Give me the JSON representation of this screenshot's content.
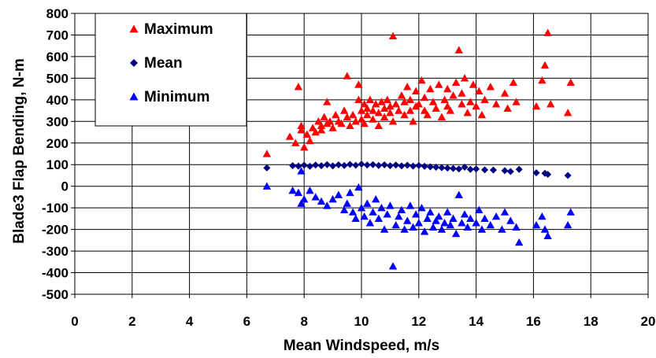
{
  "chart_data": {
    "type": "scatter",
    "title": "",
    "xlabel": "Mean Windspeed, m/s",
    "ylabel": "Blade3 Flap Bending, N-m",
    "xlim": [
      0,
      20
    ],
    "ylim": [
      -500,
      800
    ],
    "x_ticks": [
      "0",
      "2",
      "4",
      "6",
      "8",
      "10",
      "12",
      "14",
      "16",
      "18",
      "20"
    ],
    "y_ticks": [
      "800",
      "700",
      "600",
      "500",
      "400",
      "300",
      "200",
      "100",
      "0",
      "-100",
      "-200",
      "-300",
      "-400",
      "-500"
    ],
    "grid": true,
    "legend_position": "top-left",
    "series": [
      {
        "name": "Maximum",
        "marker": "triangle",
        "color": "#ff0000",
        "points": [
          [
            6.7,
            150
          ],
          [
            7.5,
            230
          ],
          [
            7.7,
            200
          ],
          [
            7.8,
            460
          ],
          [
            7.9,
            260
          ],
          [
            7.9,
            280
          ],
          [
            8.0,
            180
          ],
          [
            8.1,
            240
          ],
          [
            8.2,
            210
          ],
          [
            8.3,
            270
          ],
          [
            8.4,
            250
          ],
          [
            8.5,
            300
          ],
          [
            8.6,
            280
          ],
          [
            8.6,
            260
          ],
          [
            8.7,
            320
          ],
          [
            8.8,
            390
          ],
          [
            8.8,
            290
          ],
          [
            8.9,
            300
          ],
          [
            9.0,
            270
          ],
          [
            9.1,
            330
          ],
          [
            9.2,
            300
          ],
          [
            9.3,
            290
          ],
          [
            9.4,
            350
          ],
          [
            9.5,
            510
          ],
          [
            9.5,
            320
          ],
          [
            9.6,
            280
          ],
          [
            9.7,
            330
          ],
          [
            9.8,
            300
          ],
          [
            9.9,
            400
          ],
          [
            9.9,
            470
          ],
          [
            10.0,
            350
          ],
          [
            10.0,
            310
          ],
          [
            10.1,
            380
          ],
          [
            10.1,
            290
          ],
          [
            10.2,
            360
          ],
          [
            10.2,
            330
          ],
          [
            10.3,
            400
          ],
          [
            10.4,
            350
          ],
          [
            10.4,
            310
          ],
          [
            10.5,
            380
          ],
          [
            10.6,
            280
          ],
          [
            10.6,
            340
          ],
          [
            10.7,
            390
          ],
          [
            10.8,
            360
          ],
          [
            10.8,
            320
          ],
          [
            10.9,
            400
          ],
          [
            11.0,
            340
          ],
          [
            11.0,
            370
          ],
          [
            11.1,
            695
          ],
          [
            11.1,
            300
          ],
          [
            11.2,
            380
          ],
          [
            11.3,
            350
          ],
          [
            11.4,
            420
          ],
          [
            11.5,
            330
          ],
          [
            11.5,
            390
          ],
          [
            11.6,
            460
          ],
          [
            11.7,
            350
          ],
          [
            11.7,
            400
          ],
          [
            11.8,
            300
          ],
          [
            11.9,
            370
          ],
          [
            11.9,
            440
          ],
          [
            12.0,
            380
          ],
          [
            12.1,
            490
          ],
          [
            12.2,
            350
          ],
          [
            12.2,
            410
          ],
          [
            12.3,
            330
          ],
          [
            12.4,
            450
          ],
          [
            12.5,
            390
          ],
          [
            12.6,
            360
          ],
          [
            12.7,
            470
          ],
          [
            12.8,
            320
          ],
          [
            12.9,
            400
          ],
          [
            13.0,
            370
          ],
          [
            13.0,
            450
          ],
          [
            13.1,
            350
          ],
          [
            13.2,
            420
          ],
          [
            13.3,
            480
          ],
          [
            13.4,
            630
          ],
          [
            13.5,
            380
          ],
          [
            13.5,
            430
          ],
          [
            13.6,
            500
          ],
          [
            13.7,
            340
          ],
          [
            13.8,
            390
          ],
          [
            13.9,
            470
          ],
          [
            14.0,
            370
          ],
          [
            14.1,
            440
          ],
          [
            14.2,
            330
          ],
          [
            14.3,
            400
          ],
          [
            14.5,
            460
          ],
          [
            14.7,
            380
          ],
          [
            15.0,
            430
          ],
          [
            15.1,
            360
          ],
          [
            15.3,
            480
          ],
          [
            15.4,
            390
          ],
          [
            16.1,
            370
          ],
          [
            16.3,
            490
          ],
          [
            16.4,
            560
          ],
          [
            16.5,
            710
          ],
          [
            16.6,
            380
          ],
          [
            17.2,
            340
          ],
          [
            17.3,
            480
          ]
        ]
      },
      {
        "name": "Mean",
        "marker": "diamond",
        "color": "#000080",
        "points": [
          [
            6.7,
            85
          ],
          [
            7.6,
            95
          ],
          [
            7.8,
            93
          ],
          [
            8.0,
            97
          ],
          [
            8.2,
            92
          ],
          [
            8.4,
            98
          ],
          [
            8.6,
            95
          ],
          [
            8.8,
            100
          ],
          [
            9.0,
            94
          ],
          [
            9.2,
            99
          ],
          [
            9.4,
            96
          ],
          [
            9.6,
            101
          ],
          [
            9.8,
            97
          ],
          [
            10.0,
            102
          ],
          [
            10.2,
            98
          ],
          [
            10.4,
            100
          ],
          [
            10.6,
            96
          ],
          [
            10.8,
            99
          ],
          [
            11.0,
            95
          ],
          [
            11.2,
            98
          ],
          [
            11.4,
            94
          ],
          [
            11.6,
            97
          ],
          [
            11.8,
            93
          ],
          [
            12.0,
            96
          ],
          [
            12.2,
            92
          ],
          [
            12.4,
            90
          ],
          [
            12.6,
            88
          ],
          [
            12.8,
            86
          ],
          [
            13.0,
            84
          ],
          [
            13.2,
            82
          ],
          [
            13.4,
            80
          ],
          [
            13.6,
            88
          ],
          [
            13.8,
            78
          ],
          [
            14.0,
            80
          ],
          [
            14.3,
            76
          ],
          [
            14.6,
            75
          ],
          [
            15.0,
            72
          ],
          [
            15.2,
            68
          ],
          [
            15.5,
            78
          ],
          [
            16.1,
            62
          ],
          [
            16.4,
            60
          ],
          [
            16.5,
            55
          ],
          [
            17.2,
            50
          ]
        ]
      },
      {
        "name": "Minimum",
        "marker": "triangle",
        "color": "#0000ff",
        "points": [
          [
            6.7,
            0
          ],
          [
            7.6,
            -20
          ],
          [
            7.8,
            -30
          ],
          [
            7.9,
            -80
          ],
          [
            7.9,
            70
          ],
          [
            8.0,
            -60
          ],
          [
            8.2,
            -20
          ],
          [
            8.4,
            -50
          ],
          [
            8.6,
            -70
          ],
          [
            8.8,
            -90
          ],
          [
            9.0,
            -60
          ],
          [
            9.2,
            -40
          ],
          [
            9.4,
            -110
          ],
          [
            9.5,
            -80
          ],
          [
            9.6,
            -30
          ],
          [
            9.7,
            -120
          ],
          [
            9.8,
            -150
          ],
          [
            9.9,
            -5
          ],
          [
            10.0,
            -100
          ],
          [
            10.1,
            -140
          ],
          [
            10.2,
            -80
          ],
          [
            10.3,
            -170
          ],
          [
            10.4,
            -120
          ],
          [
            10.5,
            -60
          ],
          [
            10.6,
            -150
          ],
          [
            10.7,
            -100
          ],
          [
            10.8,
            -200
          ],
          [
            10.9,
            -130
          ],
          [
            11.0,
            -90
          ],
          [
            11.1,
            -370
          ],
          [
            11.2,
            -180
          ],
          [
            11.3,
            -140
          ],
          [
            11.4,
            -110
          ],
          [
            11.5,
            -200
          ],
          [
            11.6,
            -160
          ],
          [
            11.7,
            -90
          ],
          [
            11.8,
            -190
          ],
          [
            11.9,
            -130
          ],
          [
            12.0,
            -170
          ],
          [
            12.1,
            -100
          ],
          [
            12.2,
            -210
          ],
          [
            12.3,
            -150
          ],
          [
            12.4,
            -120
          ],
          [
            12.5,
            -190
          ],
          [
            12.6,
            -160
          ],
          [
            12.7,
            -140
          ],
          [
            12.8,
            -200
          ],
          [
            12.9,
            -170
          ],
          [
            13.0,
            -120
          ],
          [
            13.1,
            -180
          ],
          [
            13.2,
            -150
          ],
          [
            13.3,
            -220
          ],
          [
            13.4,
            -40
          ],
          [
            13.5,
            -170
          ],
          [
            13.6,
            -130
          ],
          [
            13.7,
            -190
          ],
          [
            13.8,
            -150
          ],
          [
            14.0,
            -170
          ],
          [
            14.1,
            -110
          ],
          [
            14.2,
            -200
          ],
          [
            14.3,
            -150
          ],
          [
            14.5,
            -180
          ],
          [
            14.7,
            -140
          ],
          [
            14.9,
            -200
          ],
          [
            15.0,
            -120
          ],
          [
            15.2,
            -160
          ],
          [
            15.4,
            -190
          ],
          [
            15.5,
            -260
          ],
          [
            16.1,
            -180
          ],
          [
            16.3,
            -140
          ],
          [
            16.4,
            -200
          ],
          [
            16.5,
            -230
          ],
          [
            17.2,
            -180
          ],
          [
            17.3,
            -120
          ]
        ]
      }
    ]
  }
}
